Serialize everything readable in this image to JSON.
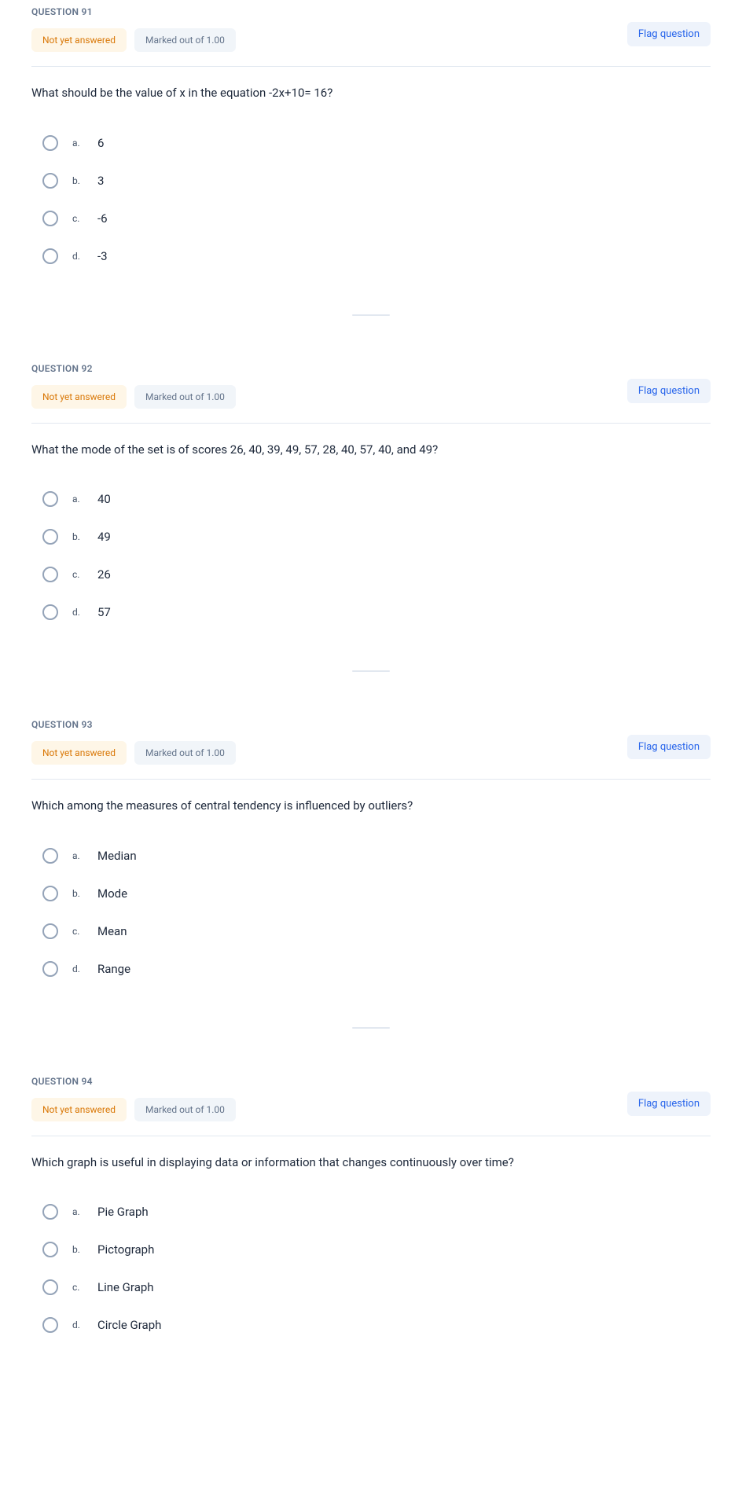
{
  "labels": {
    "question_prefix": "QUESTION",
    "status": "Not yet answered",
    "marks": "Marked out of 1.00",
    "flag": "Flag question"
  },
  "questions": [
    {
      "number": "91",
      "text": "What should be the value of x in the equation -2x+10= 16?",
      "options": [
        {
          "letter": "a.",
          "text": "6"
        },
        {
          "letter": "b.",
          "text": "3"
        },
        {
          "letter": "c.",
          "text": "-6"
        },
        {
          "letter": "d.",
          "text": "-3"
        }
      ]
    },
    {
      "number": "92",
      "text": "What the mode of the set is of scores 26, 40, 39, 49, 57, 28, 40, 57, 40, and 49?",
      "options": [
        {
          "letter": "a.",
          "text": "40"
        },
        {
          "letter": "b.",
          "text": "49"
        },
        {
          "letter": "c.",
          "text": "26"
        },
        {
          "letter": "d.",
          "text": "57"
        }
      ]
    },
    {
      "number": "93",
      "text": "Which among the measures of central tendency is influenced by outliers?",
      "options": [
        {
          "letter": "a.",
          "text": "Median"
        },
        {
          "letter": "b.",
          "text": "Mode"
        },
        {
          "letter": "c.",
          "text": "Mean"
        },
        {
          "letter": "d.",
          "text": "Range"
        }
      ]
    },
    {
      "number": "94",
      "text": "Which graph is useful in displaying data or information that changes continuously over time?",
      "options": [
        {
          "letter": "a.",
          "text": "Pie Graph"
        },
        {
          "letter": "b.",
          "text": "Pictograph"
        },
        {
          "letter": "c.",
          "text": "Line Graph"
        },
        {
          "letter": "d.",
          "text": "Circle Graph"
        }
      ]
    }
  ]
}
